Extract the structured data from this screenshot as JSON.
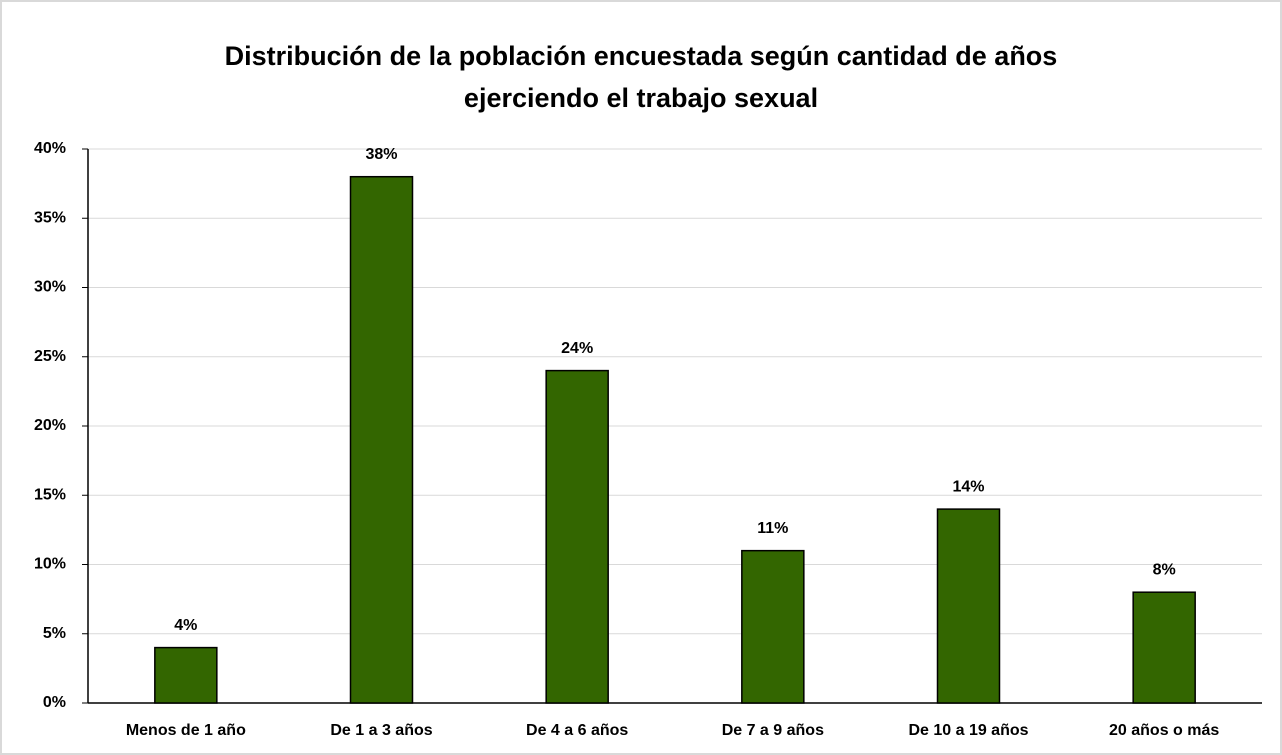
{
  "chart_data": {
    "type": "bar",
    "title": [
      "Distribución de la población encuestada según cantidad de años",
      "ejerciendo el trabajo sexual"
    ],
    "categories": [
      "Menos de 1 año",
      "De 1 a 3 años",
      "De 4 a 6 años",
      "De 7 a 9 años",
      "De 10 a 19 años",
      "20 años o más"
    ],
    "values": [
      4,
      38,
      24,
      11,
      14,
      8
    ],
    "value_labels": [
      "4%",
      "38%",
      "24%",
      "11%",
      "14%",
      "8%"
    ],
    "color": "#336600",
    "ylim": [
      0,
      40
    ],
    "yticks": [
      {
        "value": 0,
        "label": "0%"
      },
      {
        "value": 5,
        "label": "5%"
      },
      {
        "value": 10,
        "label": "10%"
      },
      {
        "value": 15,
        "label": "15%"
      },
      {
        "value": 20,
        "label": "20%"
      },
      {
        "value": 25,
        "label": "25%"
      },
      {
        "value": 30,
        "label": "30%"
      },
      {
        "value": 35,
        "label": "35%"
      },
      {
        "value": 40,
        "label": "40%"
      }
    ],
    "grid": true
  }
}
